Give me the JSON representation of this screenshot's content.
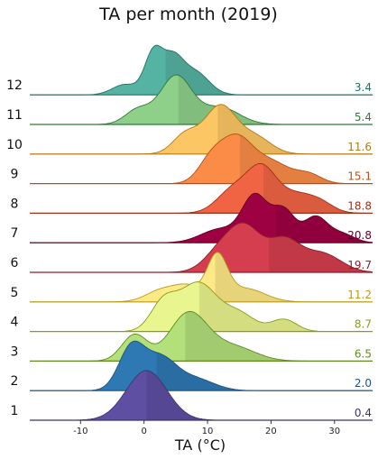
{
  "chart_data": {
    "type": "area",
    "subtype": "ridgeline",
    "title": "TA per month (2019)",
    "xlabel": "TA (°C)",
    "ylabel": "",
    "xlim": [
      -18,
      36
    ],
    "xticks": [
      -10,
      0,
      10,
      20,
      30
    ],
    "grid": false,
    "legend": "none",
    "series": [
      {
        "name": "1",
        "mean": 0.4,
        "mean_label": "0.4",
        "fill": "#5e4fa2",
        "text_color": "#3f3568",
        "components": [
          {
            "mu": 0.4,
            "sd": 3.2,
            "w": 1.0
          }
        ]
      },
      {
        "name": "2",
        "mean": 2.0,
        "mean_label": "2.0",
        "fill": "#2e78b3",
        "text_color": "#1f5282",
        "components": [
          {
            "mu": -2.0,
            "sd": 2.0,
            "w": 1.0
          },
          {
            "mu": 2.5,
            "sd": 2.5,
            "w": 0.75
          },
          {
            "mu": 8.0,
            "sd": 3.0,
            "w": 0.28
          }
        ]
      },
      {
        "name": "3",
        "mean": 6.5,
        "mean_label": "6.5",
        "fill": "#b3e07a",
        "text_color": "#5e8a1e",
        "components": [
          {
            "mu": -1.5,
            "sd": 2.0,
            "w": 0.55
          },
          {
            "mu": 7.0,
            "sd": 3.0,
            "w": 1.0
          },
          {
            "mu": 14.0,
            "sd": 3.5,
            "w": 0.3
          }
        ]
      },
      {
        "name": "4",
        "mean": 8.7,
        "mean_label": "8.7",
        "fill": "#e9f58e",
        "text_color": "#8a9a1e",
        "components": [
          {
            "mu": 3.0,
            "sd": 2.0,
            "w": 0.55
          },
          {
            "mu": 8.5,
            "sd": 3.0,
            "w": 1.0
          },
          {
            "mu": 15.0,
            "sd": 2.5,
            "w": 0.35
          },
          {
            "mu": 22.0,
            "sd": 2.0,
            "w": 0.25
          }
        ]
      },
      {
        "name": "5",
        "mean": 11.2,
        "mean_label": "11.2",
        "fill": "#fee987",
        "text_color": "#b89a1a",
        "components": [
          {
            "mu": 3.0,
            "sd": 2.5,
            "w": 0.28
          },
          {
            "mu": 7.0,
            "sd": 2.0,
            "w": 0.3
          },
          {
            "mu": 11.5,
            "sd": 1.6,
            "w": 1.0
          },
          {
            "mu": 16.0,
            "sd": 3.0,
            "w": 0.3
          }
        ]
      },
      {
        "name": "6",
        "mean": 19.7,
        "mean_label": "19.7",
        "fill": "#d53e4f",
        "text_color": "#8c1f2c",
        "components": [
          {
            "mu": 12.0,
            "sd": 2.5,
            "w": 0.5
          },
          {
            "mu": 16.0,
            "sd": 2.5,
            "w": 1.0
          },
          {
            "mu": 22.0,
            "sd": 2.5,
            "w": 0.75
          },
          {
            "mu": 28.0,
            "sd": 3.0,
            "w": 0.45
          }
        ]
      },
      {
        "name": "7",
        "mean": 20.8,
        "mean_label": "20.8",
        "fill": "#9e0142",
        "text_color": "#5e0026",
        "components": [
          {
            "mu": 12.0,
            "sd": 3.0,
            "w": 0.3
          },
          {
            "mu": 17.5,
            "sd": 2.0,
            "w": 1.0
          },
          {
            "mu": 22.0,
            "sd": 1.8,
            "w": 0.7
          },
          {
            "mu": 27.0,
            "sd": 1.8,
            "w": 0.55
          },
          {
            "mu": 31.0,
            "sd": 2.0,
            "w": 0.2
          }
        ]
      },
      {
        "name": "8",
        "mean": 18.8,
        "mean_label": "18.8",
        "fill": "#f06444",
        "text_color": "#a0301a",
        "components": [
          {
            "mu": 14.0,
            "sd": 2.5,
            "w": 0.55
          },
          {
            "mu": 18.5,
            "sd": 2.3,
            "w": 1.0
          },
          {
            "mu": 24.0,
            "sd": 3.0,
            "w": 0.45
          },
          {
            "mu": 28.0,
            "sd": 2.0,
            "w": 0.15
          }
        ]
      },
      {
        "name": "9",
        "mean": 15.1,
        "mean_label": "15.1",
        "fill": "#fa8c48",
        "text_color": "#b2501a",
        "components": [
          {
            "mu": 10.5,
            "sd": 2.0,
            "w": 0.5
          },
          {
            "mu": 14.5,
            "sd": 2.5,
            "w": 1.0
          },
          {
            "mu": 20.0,
            "sd": 3.0,
            "w": 0.5
          },
          {
            "mu": 26.0,
            "sd": 2.0,
            "w": 0.2
          }
        ]
      },
      {
        "name": "10",
        "mean": 11.6,
        "mean_label": "11.6",
        "fill": "#fdc664",
        "text_color": "#b37a14",
        "components": [
          {
            "mu": 6.5,
            "sd": 2.0,
            "w": 0.4
          },
          {
            "mu": 12.0,
            "sd": 2.5,
            "w": 1.0
          },
          {
            "mu": 17.5,
            "sd": 2.5,
            "w": 0.35
          }
        ]
      },
      {
        "name": "11",
        "mean": 5.4,
        "mean_label": "5.4",
        "fill": "#8ed08a",
        "text_color": "#2e7a3a",
        "components": [
          {
            "mu": -1.0,
            "sd": 2.0,
            "w": 0.3
          },
          {
            "mu": 5.0,
            "sd": 2.5,
            "w": 1.0
          },
          {
            "mu": 12.0,
            "sd": 3.0,
            "w": 0.35
          }
        ]
      },
      {
        "name": "12",
        "mean": 3.4,
        "mean_label": "3.4",
        "fill": "#55b3a3",
        "text_color": "#236f64",
        "components": [
          {
            "mu": -3.0,
            "sd": 2.0,
            "w": 0.25
          },
          {
            "mu": 1.5,
            "sd": 1.4,
            "w": 1.0
          },
          {
            "mu": 4.5,
            "sd": 1.6,
            "w": 0.8
          },
          {
            "mu": 8.0,
            "sd": 2.2,
            "w": 0.55
          }
        ]
      }
    ]
  }
}
